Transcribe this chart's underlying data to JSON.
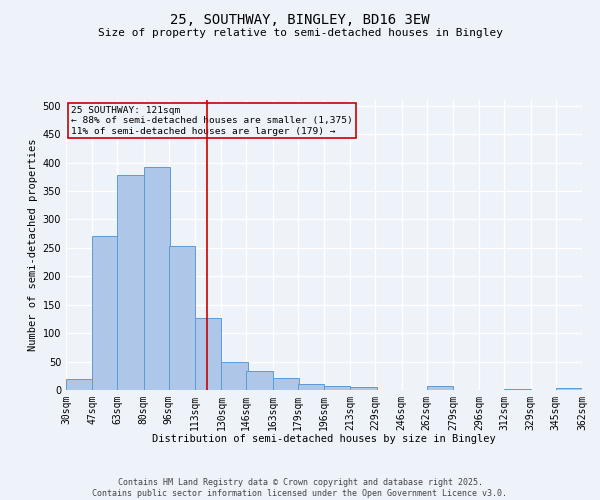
{
  "title1": "25, SOUTHWAY, BINGLEY, BD16 3EW",
  "title2": "Size of property relative to semi-detached houses in Bingley",
  "xlabel": "Distribution of semi-detached houses by size in Bingley",
  "ylabel": "Number of semi-detached properties",
  "bar_left_edges": [
    30,
    47,
    63,
    80,
    96,
    113,
    130,
    146,
    163,
    179,
    196,
    213,
    229,
    246,
    262,
    279,
    296,
    312,
    329,
    345
  ],
  "bar_heights": [
    20,
    270,
    378,
    393,
    254,
    126,
    50,
    34,
    21,
    10,
    7,
    5,
    0,
    0,
    7,
    0,
    0,
    2,
    0,
    3
  ],
  "bin_width": 17,
  "tick_labels": [
    "30sqm",
    "47sqm",
    "63sqm",
    "80sqm",
    "96sqm",
    "113sqm",
    "130sqm",
    "146sqm",
    "163sqm",
    "179sqm",
    "196sqm",
    "213sqm",
    "229sqm",
    "246sqm",
    "262sqm",
    "279sqm",
    "296sqm",
    "312sqm",
    "329sqm",
    "345sqm",
    "362sqm"
  ],
  "bar_color": "#aec6e8",
  "bar_edge_color": "#5b9bd5",
  "property_line_x": 121,
  "property_line_color": "#cc0000",
  "annotation_title": "25 SOUTHWAY: 121sqm",
  "annotation_line1": "← 88% of semi-detached houses are smaller (1,375)",
  "annotation_line2": "11% of semi-detached houses are larger (179) →",
  "annotation_box_color": "#cc0000",
  "ylim": [
    0,
    510
  ],
  "background_color": "#eef2f9",
  "grid_color": "#ffffff",
  "footer1": "Contains HM Land Registry data © Crown copyright and database right 2025.",
  "footer2": "Contains public sector information licensed under the Open Government Licence v3.0."
}
